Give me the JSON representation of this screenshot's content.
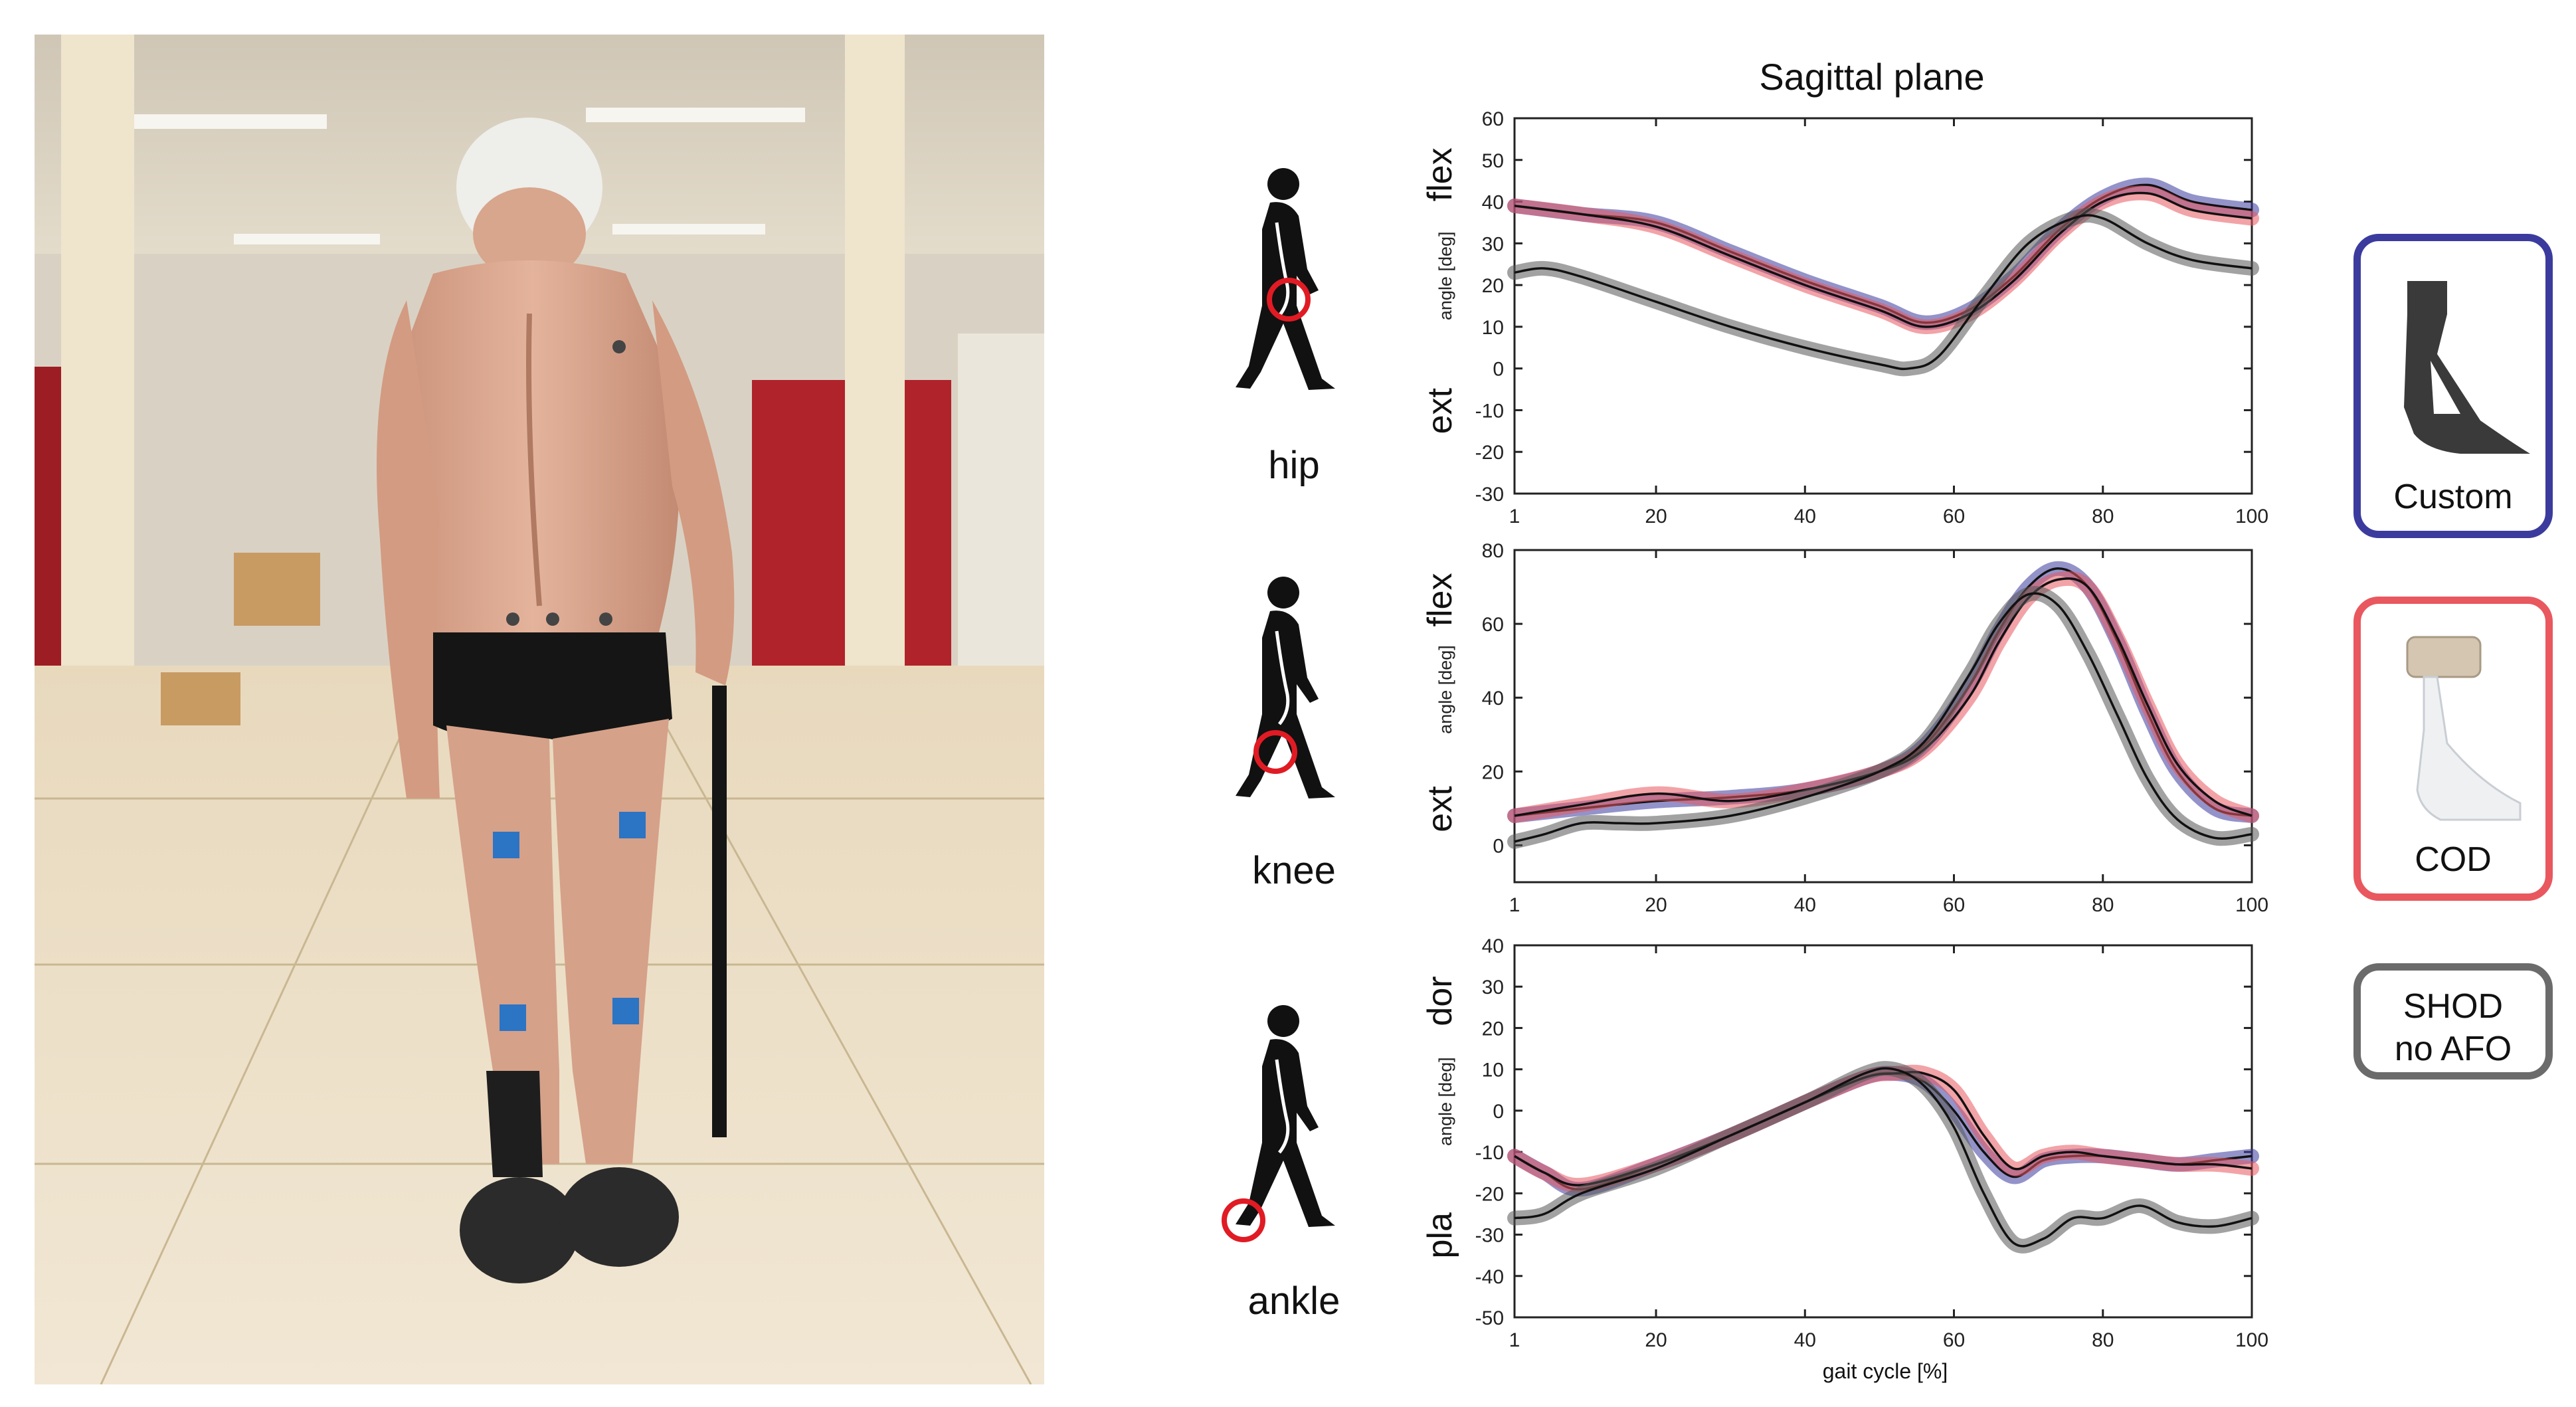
{
  "chart_data": [
    {
      "type": "line",
      "title": "Sagittal plane",
      "joint_label": "hip",
      "ylabel": "angle [deg]",
      "y_direction_labels": {
        "top": "flex",
        "bottom": "ext"
      },
      "xlim": [
        1,
        100
      ],
      "ylim": [
        -30,
        60
      ],
      "xticks": [
        1,
        20,
        40,
        60,
        80,
        100
      ],
      "yticks": [
        -30,
        -20,
        -10,
        0,
        10,
        20,
        30,
        40,
        50,
        60
      ],
      "grid": false,
      "series": [
        {
          "color": "#3b3b9e",
          "x": [
            1,
            10,
            20,
            30,
            40,
            50,
            56,
            62,
            68,
            74,
            80,
            86,
            92,
            100
          ],
          "y": [
            39,
            37,
            35,
            28,
            21,
            15,
            11,
            14,
            22,
            33,
            41,
            44,
            40,
            38
          ]
        },
        {
          "color": "#e8585e",
          "x": [
            1,
            10,
            20,
            30,
            40,
            50,
            56,
            62,
            68,
            74,
            80,
            86,
            92,
            100
          ],
          "y": [
            39,
            37,
            34,
            27,
            20,
            14,
            10,
            13,
            21,
            32,
            40,
            42,
            38,
            36
          ]
        },
        {
          "color": "#555555",
          "x": [
            1,
            5,
            10,
            20,
            30,
            40,
            50,
            54,
            58,
            64,
            70,
            76,
            80,
            86,
            92,
            100
          ],
          "y": [
            23,
            24,
            22,
            16,
            10,
            5,
            1,
            0,
            3,
            17,
            30,
            36,
            36,
            30,
            26,
            24
          ]
        }
      ]
    },
    {
      "type": "line",
      "joint_label": "knee",
      "ylabel": "angle [deg]",
      "y_direction_labels": {
        "top": "flex",
        "bottom": "ext"
      },
      "xlim": [
        1,
        100
      ],
      "ylim": [
        -10,
        80
      ],
      "xticks": [
        1,
        20,
        40,
        60,
        80,
        100
      ],
      "yticks": [
        0,
        20,
        40,
        60,
        80
      ],
      "grid": false,
      "series": [
        {
          "color": "#3b3b9e",
          "x": [
            1,
            10,
            20,
            30,
            40,
            50,
            56,
            62,
            66,
            70,
            74,
            78,
            82,
            86,
            90,
            95,
            100
          ],
          "y": [
            8,
            10,
            12,
            13,
            15,
            20,
            27,
            43,
            58,
            70,
            75,
            70,
            55,
            36,
            20,
            10,
            8
          ]
        },
        {
          "color": "#e8585e",
          "x": [
            1,
            10,
            20,
            30,
            40,
            50,
            56,
            62,
            66,
            70,
            74,
            78,
            82,
            86,
            90,
            95,
            100
          ],
          "y": [
            8,
            11,
            14,
            12,
            15,
            20,
            26,
            40,
            55,
            67,
            72,
            70,
            56,
            38,
            22,
            12,
            8
          ]
        },
        {
          "color": "#555555",
          "x": [
            1,
            5,
            10,
            15,
            20,
            30,
            40,
            50,
            56,
            62,
            66,
            70,
            74,
            78,
            82,
            86,
            90,
            95,
            100
          ],
          "y": [
            1,
            3,
            6,
            6,
            6,
            8,
            13,
            20,
            28,
            46,
            60,
            68,
            65,
            52,
            35,
            18,
            7,
            2,
            3
          ]
        }
      ]
    },
    {
      "type": "line",
      "joint_label": "ankle",
      "ylabel": "angle [deg]",
      "xlabel": "gait cycle [%]",
      "y_direction_labels": {
        "top": "dor",
        "bottom": "pla"
      },
      "xlim": [
        1,
        100
      ],
      "ylim": [
        -50,
        40
      ],
      "xticks": [
        1,
        20,
        40,
        60,
        80,
        100
      ],
      "yticks": [
        -50,
        -40,
        -30,
        -20,
        -10,
        0,
        10,
        20,
        30,
        40
      ],
      "grid": false,
      "series": [
        {
          "color": "#3b3b9e",
          "x": [
            1,
            5,
            10,
            20,
            30,
            40,
            48,
            52,
            56,
            60,
            64,
            68,
            72,
            76,
            80,
            85,
            90,
            95,
            100
          ],
          "y": [
            -11,
            -15,
            -19,
            -13,
            -6,
            2,
            8,
            9,
            7,
            0,
            -10,
            -16,
            -12,
            -11,
            -11,
            -12,
            -13,
            -12,
            -11
          ]
        },
        {
          "color": "#e8585e",
          "x": [
            1,
            5,
            10,
            20,
            30,
            40,
            48,
            52,
            56,
            60,
            64,
            68,
            72,
            76,
            80,
            85,
            90,
            95,
            100
          ],
          "y": [
            -11,
            -15,
            -18,
            -13,
            -6,
            2,
            8,
            9,
            9,
            5,
            -6,
            -14,
            -11,
            -10,
            -11,
            -12,
            -13,
            -13,
            -14
          ]
        },
        {
          "color": "#555555",
          "x": [
            1,
            5,
            10,
            20,
            30,
            40,
            48,
            52,
            56,
            60,
            64,
            68,
            72,
            76,
            80,
            85,
            90,
            95,
            100
          ],
          "y": [
            -26,
            -25,
            -20,
            -14,
            -6,
            2,
            9,
            10,
            6,
            -4,
            -20,
            -32,
            -31,
            -26,
            -26,
            -23,
            -27,
            -28,
            -26
          ]
        }
      ]
    }
  ],
  "legend": [
    {
      "label": "Custom",
      "color": "#3b3b9e"
    },
    {
      "label": "COD",
      "color": "#e8585e"
    },
    {
      "label_line1": "SHOD",
      "label_line2": "no AFO",
      "color": "#555555"
    }
  ]
}
